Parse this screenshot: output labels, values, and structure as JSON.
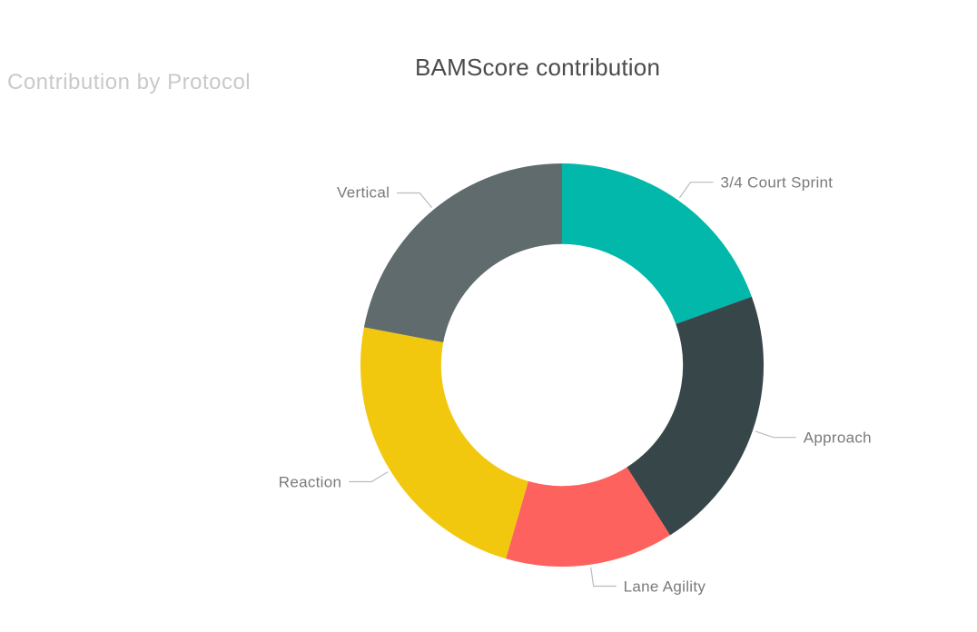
{
  "page": {
    "watermark": "Contribution by Protocol"
  },
  "chart_data": {
    "type": "pie",
    "subtype": "donut",
    "title": "BAMScore contribution",
    "values_are_percent_estimates": true,
    "slices": [
      {
        "label": "3/4 Court Sprint",
        "value": 19.5,
        "color": "#01B8AA"
      },
      {
        "label": "Approach",
        "value": 21.5,
        "color": "#374649"
      },
      {
        "label": "Lane Agility",
        "value": 13.5,
        "color": "#FD625E"
      },
      {
        "label": "Reaction",
        "value": 23.5,
        "color": "#F2C80F"
      },
      {
        "label": "Vertical",
        "value": 22.0,
        "color": "#5F6B6D"
      }
    ],
    "layout": {
      "start_angle_deg": 0,
      "direction": "clockwise",
      "inner_radius_ratio": 0.6,
      "labels": "outside-with-leader-lines",
      "legend": "none",
      "background": "#FFFFFF",
      "label_color": "#7A7A7A",
      "leader_line_color": "#BBBBBB",
      "title_color": "#4B4B4B",
      "watermark_color": "#C9C9C9"
    }
  }
}
